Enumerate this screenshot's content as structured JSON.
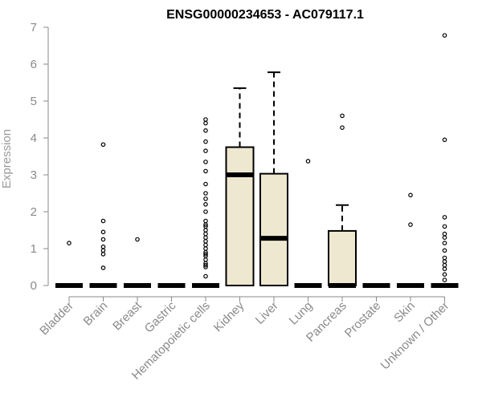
{
  "chart_data": {
    "type": "box",
    "title": "ENSG00000234653 - AC079117.1",
    "ylabel": "Expression",
    "xlabel": "",
    "ylim": [
      0,
      7
    ],
    "yticks": [
      0,
      1,
      2,
      3,
      4,
      5,
      6,
      7
    ],
    "grid": false,
    "box_fill": "#efe8d0",
    "categories": [
      "Bladder",
      "Brain",
      "Breast",
      "Gastric",
      "Hematopoietic cells",
      "Kidney",
      "Liver",
      "Lung",
      "Pancreas",
      "Prostate",
      "Skin",
      "Unknown / Other"
    ],
    "boxes": [
      {
        "q1": 0,
        "median": 0,
        "q3": 0,
        "whisker_low": 0,
        "whisker_high": 0,
        "outliers": [
          1.15
        ]
      },
      {
        "q1": 0,
        "median": 0,
        "q3": 0,
        "whisker_low": 0,
        "whisker_high": 0,
        "outliers": [
          0.48,
          0.85,
          0.95,
          1.05,
          1.25,
          1.45,
          1.75,
          3.82
        ]
      },
      {
        "q1": 0,
        "median": 0,
        "q3": 0,
        "whisker_low": 0,
        "whisker_high": 0,
        "outliers": [
          1.25
        ]
      },
      {
        "q1": 0,
        "median": 0,
        "q3": 0,
        "whisker_low": 0,
        "whisker_high": 0,
        "outliers": []
      },
      {
        "q1": 0,
        "median": 0,
        "q3": 0,
        "whisker_low": 0,
        "whisker_high": 0,
        "outliers": [
          0.25,
          0.5,
          0.55,
          0.6,
          0.7,
          0.8,
          0.85,
          0.9,
          1.0,
          1.1,
          1.2,
          1.3,
          1.4,
          1.5,
          1.6,
          1.65,
          1.75,
          2.0,
          2.2,
          2.35,
          2.5,
          2.75,
          3.1,
          3.35,
          3.65,
          3.9,
          4.2,
          4.4,
          4.5
        ]
      },
      {
        "q1": 0,
        "median": 3.0,
        "q3": 3.75,
        "whisker_low": 0,
        "whisker_high": 5.35,
        "outliers": []
      },
      {
        "q1": 0,
        "median": 1.28,
        "q3": 3.03,
        "whisker_low": 0,
        "whisker_high": 5.78,
        "outliers": []
      },
      {
        "q1": 0,
        "median": 0,
        "q3": 0,
        "whisker_low": 0,
        "whisker_high": 0,
        "outliers": [
          3.37
        ]
      },
      {
        "q1": 0,
        "median": 0,
        "q3": 1.48,
        "whisker_low": 0,
        "whisker_high": 2.18,
        "outliers": [
          4.28,
          4.6
        ]
      },
      {
        "q1": 0,
        "median": 0,
        "q3": 0,
        "whisker_low": 0,
        "whisker_high": 0,
        "outliers": []
      },
      {
        "q1": 0,
        "median": 0,
        "q3": 0,
        "whisker_low": 0,
        "whisker_high": 0,
        "outliers": [
          1.65,
          2.45
        ]
      },
      {
        "q1": 0,
        "median": 0,
        "q3": 0,
        "whisker_low": 0,
        "whisker_high": 0,
        "outliers": [
          0.15,
          0.3,
          0.45,
          0.55,
          0.65,
          0.75,
          0.95,
          1.15,
          1.3,
          1.4,
          1.6,
          1.85,
          3.95,
          6.78
        ]
      }
    ]
  }
}
